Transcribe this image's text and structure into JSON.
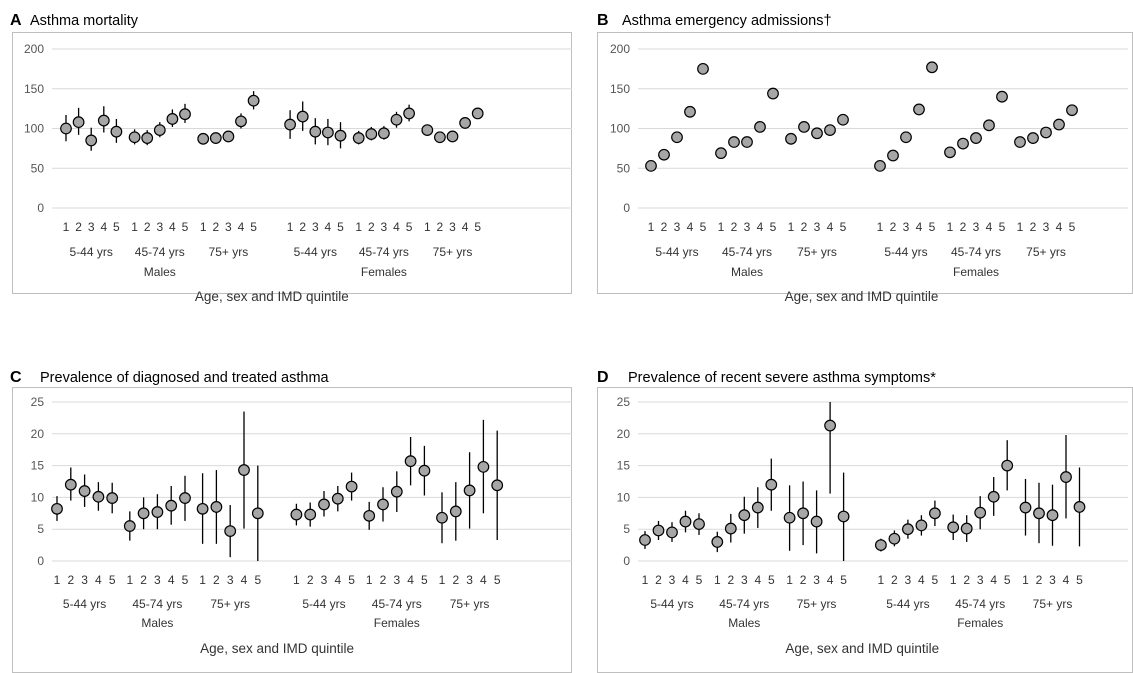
{
  "colors": {
    "grid": "#d9d9d9",
    "frame": "#bfbfbf",
    "marker_fill": "#a6a6a6",
    "marker_stroke": "#000000",
    "errorbar": "#000000"
  },
  "x_label_text": "Age, sex and IMD quintile",
  "quintile_labels": [
    "1",
    "2",
    "3",
    "4",
    "5"
  ],
  "age_groups": [
    "5-44 yrs",
    "45-74 yrs",
    "75+ yrs"
  ],
  "sexes": [
    "Males",
    "Females"
  ],
  "chart_data": [
    {
      "panel": "A",
      "title": "Asthma mortality",
      "type": "scatter",
      "ylim": [
        0,
        200
      ],
      "yticks": [
        0,
        50,
        100,
        150,
        200
      ],
      "error_bars": true,
      "grid": true,
      "xlabel": "Age, sex and IMD quintile",
      "series": [
        {
          "sex": "Males",
          "age": "5-44 yrs",
          "values": [
            100,
            108,
            85,
            110,
            96
          ],
          "lower": [
            84,
            92,
            72,
            95,
            82
          ],
          "upper": [
            117,
            126,
            101,
            128,
            112
          ]
        },
        {
          "sex": "Males",
          "age": "45-74 yrs",
          "values": [
            89,
            88,
            98,
            112,
            118
          ],
          "lower": [
            80,
            79,
            89,
            102,
            107
          ],
          "upper": [
            99,
            98,
            108,
            124,
            131
          ]
        },
        {
          "sex": "Males",
          "age": "75+ yrs",
          "values": [
            87,
            88,
            90,
            109,
            135
          ],
          "lower": [
            81,
            82,
            84,
            100,
            124
          ],
          "upper": [
            94,
            95,
            97,
            119,
            147
          ]
        },
        {
          "sex": "Females",
          "age": "5-44 yrs",
          "values": [
            105,
            115,
            96,
            95,
            91
          ],
          "lower": [
            87,
            97,
            80,
            79,
            75
          ],
          "upper": [
            123,
            134,
            113,
            112,
            108
          ]
        },
        {
          "sex": "Females",
          "age": "45-74 yrs",
          "values": [
            88,
            93,
            94,
            111,
            119
          ],
          "lower": [
            80,
            85,
            86,
            101,
            109
          ],
          "upper": [
            97,
            102,
            103,
            121,
            130
          ]
        },
        {
          "sex": "Females",
          "age": "75+ yrs",
          "values": [
            98,
            89,
            90,
            107,
            119
          ],
          "lower": [
            95,
            86,
            87,
            103,
            115
          ],
          "upper": [
            102,
            92,
            93,
            111,
            123
          ]
        }
      ]
    },
    {
      "panel": "B",
      "title": "Asthma emergency admissions†",
      "type": "scatter",
      "ylim": [
        0,
        200
      ],
      "yticks": [
        0,
        50,
        100,
        150,
        200
      ],
      "error_bars": false,
      "grid": true,
      "xlabel": "Age, sex and IMD quintile",
      "series": [
        {
          "sex": "Males",
          "age": "5-44 yrs",
          "values": [
            53,
            67,
            89,
            121,
            175
          ]
        },
        {
          "sex": "Males",
          "age": "45-74 yrs",
          "values": [
            69,
            83,
            83,
            102,
            144
          ]
        },
        {
          "sex": "Males",
          "age": "75+ yrs",
          "values": [
            87,
            102,
            94,
            98,
            111
          ]
        },
        {
          "sex": "Females",
          "age": "5-44 yrs",
          "values": [
            53,
            66,
            89,
            124,
            177
          ]
        },
        {
          "sex": "Females",
          "age": "45-74 yrs",
          "values": [
            70,
            81,
            88,
            104,
            140
          ]
        },
        {
          "sex": "Females",
          "age": "75+ yrs",
          "values": [
            83,
            88,
            95,
            105,
            123
          ]
        }
      ]
    },
    {
      "panel": "C",
      "title": "Prevalence of diagnosed and treated asthma",
      "type": "scatter",
      "ylim": [
        0,
        25
      ],
      "yticks": [
        0,
        5,
        10,
        15,
        20,
        25
      ],
      "error_bars": true,
      "grid": true,
      "xlabel": "Age, sex and IMD quintile",
      "series": [
        {
          "sex": "Males",
          "age": "5-44 yrs",
          "values": [
            8.2,
            12.0,
            11.0,
            10.1,
            9.9
          ],
          "lower": [
            6.3,
            9.5,
            8.5,
            7.9,
            7.5
          ],
          "upper": [
            10.2,
            14.7,
            13.6,
            12.4,
            12.3
          ]
        },
        {
          "sex": "Males",
          "age": "45-74 yrs",
          "values": [
            5.5,
            7.5,
            7.7,
            8.7,
            9.9
          ],
          "lower": [
            3.2,
            5.0,
            5.0,
            5.7,
            6.3
          ],
          "upper": [
            7.8,
            10.0,
            10.5,
            11.8,
            13.4
          ]
        },
        {
          "sex": "Males",
          "age": "75+ yrs",
          "values": [
            8.2,
            8.5,
            4.7,
            14.3,
            7.5
          ],
          "lower": [
            2.7,
            2.7,
            0.6,
            5.1,
            0.0
          ],
          "upper": [
            13.8,
            14.3,
            8.8,
            23.5,
            15.0
          ]
        },
        {
          "sex": "Females",
          "age": "5-44 yrs",
          "values": [
            7.3,
            7.3,
            8.9,
            9.8,
            11.7
          ],
          "lower": [
            5.6,
            5.4,
            7.0,
            7.8,
            9.5
          ],
          "upper": [
            9.0,
            9.2,
            11.0,
            11.8,
            13.9
          ]
        },
        {
          "sex": "Females",
          "age": "45-74 yrs",
          "values": [
            7.1,
            8.9,
            10.9,
            15.7,
            14.2
          ],
          "lower": [
            4.9,
            6.2,
            7.7,
            11.9,
            10.3
          ],
          "upper": [
            9.3,
            11.6,
            14.1,
            19.5,
            18.1
          ]
        },
        {
          "sex": "Females",
          "age": "75+ yrs",
          "values": [
            6.8,
            7.8,
            11.1,
            14.8,
            11.9
          ],
          "lower": [
            2.8,
            3.2,
            5.1,
            7.5,
            3.3
          ],
          "upper": [
            10.8,
            12.4,
            17.1,
            22.2,
            20.5
          ]
        }
      ]
    },
    {
      "panel": "D",
      "title": "Prevalence of recent severe asthma symptoms*",
      "type": "scatter",
      "ylim": [
        0,
        25
      ],
      "yticks": [
        0,
        5,
        10,
        15,
        20,
        25
      ],
      "error_bars": true,
      "grid": true,
      "xlabel": "Age, sex and IMD quintile",
      "series": [
        {
          "sex": "Males",
          "age": "5-44 yrs",
          "values": [
            3.3,
            4.8,
            4.5,
            6.2,
            5.8
          ],
          "lower": [
            1.9,
            3.3,
            3.0,
            4.5,
            4.1
          ],
          "upper": [
            4.7,
            6.3,
            6.1,
            7.9,
            7.5
          ]
        },
        {
          "sex": "Males",
          "age": "45-74 yrs",
          "values": [
            3.0,
            5.1,
            7.2,
            8.4,
            12.0
          ],
          "lower": [
            1.4,
            2.9,
            4.3,
            5.2,
            7.9
          ],
          "upper": [
            4.6,
            7.4,
            10.1,
            11.6,
            16.1
          ]
        },
        {
          "sex": "Males",
          "age": "75+ yrs",
          "values": [
            6.8,
            7.5,
            6.2,
            21.3,
            7.0
          ],
          "lower": [
            1.6,
            2.5,
            1.2,
            10.6,
            0.0
          ],
          "upper": [
            11.9,
            12.5,
            11.1,
            25.0,
            13.9
          ]
        },
        {
          "sex": "Females",
          "age": "5-44 yrs",
          "values": [
            2.5,
            3.5,
            5.0,
            5.6,
            7.5
          ],
          "lower": [
            1.5,
            2.3,
            3.5,
            4.0,
            5.5
          ],
          "upper": [
            3.5,
            4.8,
            6.5,
            7.2,
            9.5
          ]
        },
        {
          "sex": "Females",
          "age": "45-74 yrs",
          "values": [
            5.3,
            5.1,
            7.6,
            10.1,
            15.0
          ],
          "lower": [
            3.3,
            3.0,
            5.0,
            7.1,
            11.1
          ],
          "upper": [
            7.3,
            7.2,
            10.2,
            13.2,
            19.0
          ]
        },
        {
          "sex": "Females",
          "age": "75+ yrs",
          "values": [
            8.4,
            7.5,
            7.2,
            13.2,
            8.5
          ],
          "lower": [
            4.0,
            2.8,
            2.4,
            6.7,
            2.3
          ],
          "upper": [
            12.9,
            12.3,
            12.0,
            19.8,
            14.7
          ]
        }
      ]
    }
  ]
}
